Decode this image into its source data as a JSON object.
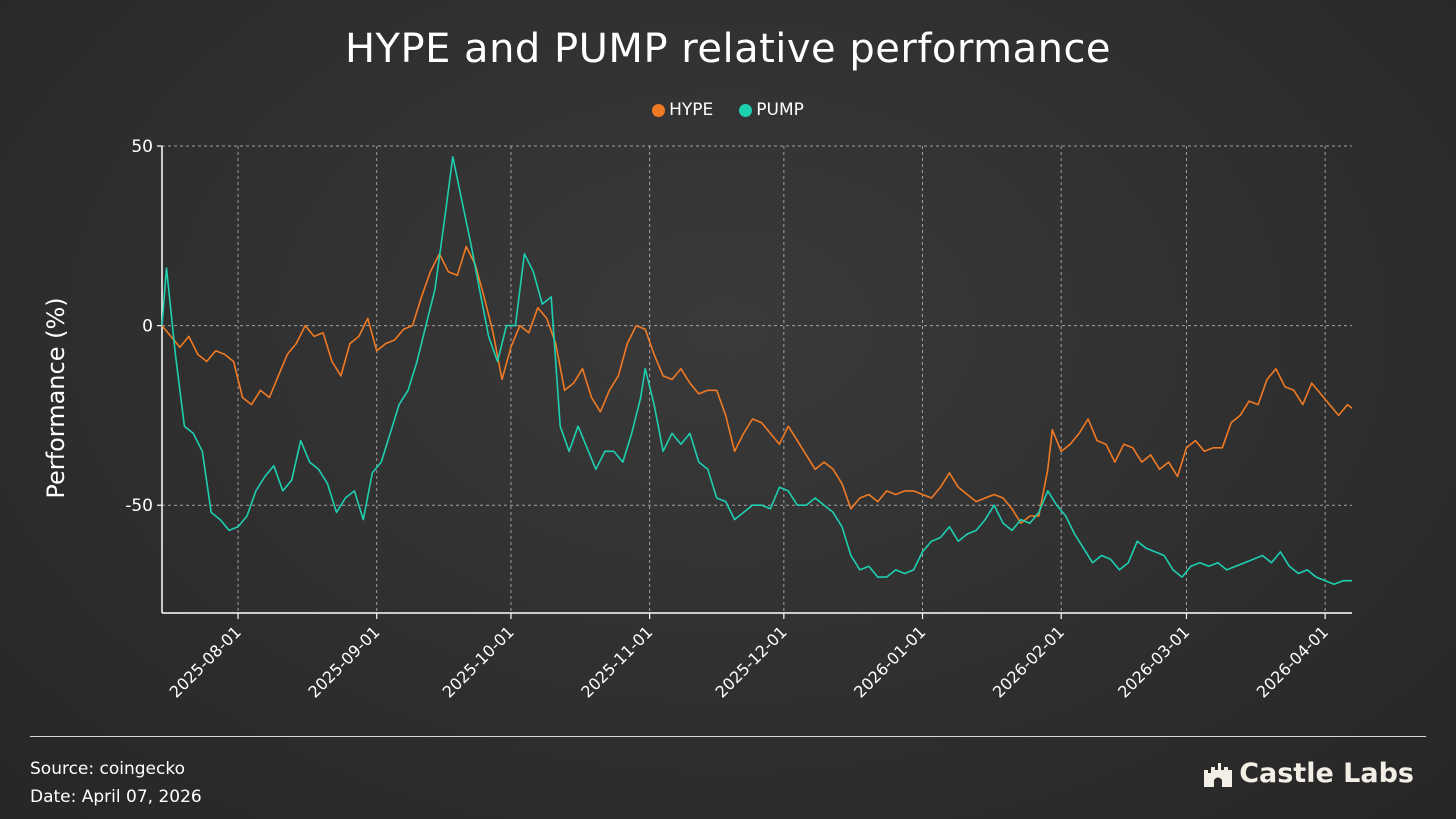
{
  "title": "HYPE and PUMP relative performance",
  "footer": {
    "source": "Source: coingecko",
    "date": "Date: April 07, 2026",
    "brand": "Castle Labs"
  },
  "colors": {
    "hype": "#f07a24",
    "pump": "#1ecfb0",
    "grid": "#bdbdbd",
    "axis": "#ffffff"
  },
  "chart_data": {
    "type": "line",
    "title": "HYPE and PUMP relative performance",
    "xlabel": "",
    "ylabel": "Performance (%)",
    "xlim": [
      "2025-07-15",
      "2026-04-07"
    ],
    "ylim": [
      -80,
      50
    ],
    "yticks": [
      50,
      0,
      -50
    ],
    "ytick_labels": [
      "50",
      "0",
      "-50"
    ],
    "xticks": [
      "2025-08-01",
      "2025-09-01",
      "2025-10-01",
      "2025-11-01",
      "2025-12-01",
      "2026-01-01",
      "2026-02-01",
      "2026-03-01",
      "2026-04-01"
    ],
    "grid": true,
    "legend_position": "top-center",
    "series": [
      {
        "name": "HYPE",
        "color": "#f07a24",
        "points": [
          [
            "2025-07-15",
            0
          ],
          [
            "2025-07-17",
            -3
          ],
          [
            "2025-07-19",
            -6
          ],
          [
            "2025-07-21",
            -3
          ],
          [
            "2025-07-23",
            -8
          ],
          [
            "2025-07-25",
            -10
          ],
          [
            "2025-07-27",
            -7
          ],
          [
            "2025-07-29",
            -8
          ],
          [
            "2025-07-31",
            -10
          ],
          [
            "2025-08-02",
            -20
          ],
          [
            "2025-08-04",
            -22
          ],
          [
            "2025-08-06",
            -18
          ],
          [
            "2025-08-08",
            -20
          ],
          [
            "2025-08-10",
            -14
          ],
          [
            "2025-08-12",
            -8
          ],
          [
            "2025-08-14",
            -5
          ],
          [
            "2025-08-16",
            0
          ],
          [
            "2025-08-18",
            -3
          ],
          [
            "2025-08-20",
            -2
          ],
          [
            "2025-08-22",
            -10
          ],
          [
            "2025-08-24",
            -14
          ],
          [
            "2025-08-26",
            -5
          ],
          [
            "2025-08-28",
            -3
          ],
          [
            "2025-08-30",
            2
          ],
          [
            "2025-09-01",
            -7
          ],
          [
            "2025-09-03",
            -5
          ],
          [
            "2025-09-05",
            -4
          ],
          [
            "2025-09-07",
            -1
          ],
          [
            "2025-09-09",
            0
          ],
          [
            "2025-09-11",
            8
          ],
          [
            "2025-09-13",
            15
          ],
          [
            "2025-09-15",
            20
          ],
          [
            "2025-09-17",
            15
          ],
          [
            "2025-09-19",
            14
          ],
          [
            "2025-09-21",
            22
          ],
          [
            "2025-09-23",
            17
          ],
          [
            "2025-09-25",
            8
          ],
          [
            "2025-09-27",
            -2
          ],
          [
            "2025-09-29",
            -15
          ],
          [
            "2025-10-01",
            -6
          ],
          [
            "2025-10-03",
            0
          ],
          [
            "2025-10-05",
            -2
          ],
          [
            "2025-10-07",
            5
          ],
          [
            "2025-10-09",
            2
          ],
          [
            "2025-10-11",
            -5
          ],
          [
            "2025-10-13",
            -18
          ],
          [
            "2025-10-15",
            -16
          ],
          [
            "2025-10-17",
            -12
          ],
          [
            "2025-10-19",
            -20
          ],
          [
            "2025-10-21",
            -24
          ],
          [
            "2025-10-23",
            -18
          ],
          [
            "2025-10-25",
            -14
          ],
          [
            "2025-10-27",
            -5
          ],
          [
            "2025-10-29",
            0
          ],
          [
            "2025-10-31",
            -1
          ],
          [
            "2025-11-02",
            -8
          ],
          [
            "2025-11-04",
            -14
          ],
          [
            "2025-11-06",
            -15
          ],
          [
            "2025-11-08",
            -12
          ],
          [
            "2025-11-10",
            -16
          ],
          [
            "2025-11-12",
            -19
          ],
          [
            "2025-11-14",
            -18
          ],
          [
            "2025-11-16",
            -18
          ],
          [
            "2025-11-18",
            -25
          ],
          [
            "2025-11-20",
            -35
          ],
          [
            "2025-11-22",
            -30
          ],
          [
            "2025-11-24",
            -26
          ],
          [
            "2025-11-26",
            -27
          ],
          [
            "2025-11-28",
            -30
          ],
          [
            "2025-11-30",
            -33
          ],
          [
            "2025-12-02",
            -28
          ],
          [
            "2025-12-04",
            -32
          ],
          [
            "2025-12-06",
            -36
          ],
          [
            "2025-12-08",
            -40
          ],
          [
            "2025-12-10",
            -38
          ],
          [
            "2025-12-12",
            -40
          ],
          [
            "2025-12-14",
            -44
          ],
          [
            "2025-12-16",
            -51
          ],
          [
            "2025-12-18",
            -48
          ],
          [
            "2025-12-20",
            -47
          ],
          [
            "2025-12-22",
            -49
          ],
          [
            "2025-12-24",
            -46
          ],
          [
            "2025-12-26",
            -47
          ],
          [
            "2025-12-28",
            -46
          ],
          [
            "2025-12-30",
            -46
          ],
          [
            "2026-01-01",
            -47
          ],
          [
            "2026-01-03",
            -48
          ],
          [
            "2026-01-05",
            -45
          ],
          [
            "2026-01-07",
            -41
          ],
          [
            "2026-01-09",
            -45
          ],
          [
            "2026-01-11",
            -47
          ],
          [
            "2026-01-13",
            -49
          ],
          [
            "2026-01-15",
            -48
          ],
          [
            "2026-01-17",
            -47
          ],
          [
            "2026-01-19",
            -48
          ],
          [
            "2026-01-21",
            -51
          ],
          [
            "2026-01-23",
            -55
          ],
          [
            "2026-01-25",
            -53
          ],
          [
            "2026-01-27",
            -53
          ],
          [
            "2026-01-29",
            -40
          ],
          [
            "2026-01-30",
            -29
          ],
          [
            "2026-02-01",
            -35
          ],
          [
            "2026-02-03",
            -33
          ],
          [
            "2026-02-05",
            -30
          ],
          [
            "2026-02-07",
            -26
          ],
          [
            "2026-02-09",
            -32
          ],
          [
            "2026-02-11",
            -33
          ],
          [
            "2026-02-13",
            -38
          ],
          [
            "2026-02-15",
            -33
          ],
          [
            "2026-02-17",
            -34
          ],
          [
            "2026-02-19",
            -38
          ],
          [
            "2026-02-21",
            -36
          ],
          [
            "2026-02-23",
            -40
          ],
          [
            "2026-02-25",
            -38
          ],
          [
            "2026-02-27",
            -42
          ],
          [
            "2026-03-01",
            -34
          ],
          [
            "2026-03-03",
            -32
          ],
          [
            "2026-03-05",
            -35
          ],
          [
            "2026-03-07",
            -34
          ],
          [
            "2026-03-09",
            -34
          ],
          [
            "2026-03-11",
            -27
          ],
          [
            "2026-03-13",
            -25
          ],
          [
            "2026-03-15",
            -21
          ],
          [
            "2026-03-17",
            -22
          ],
          [
            "2026-03-19",
            -15
          ],
          [
            "2026-03-21",
            -12
          ],
          [
            "2026-03-23",
            -17
          ],
          [
            "2026-03-25",
            -18
          ],
          [
            "2026-03-27",
            -22
          ],
          [
            "2026-03-29",
            -16
          ],
          [
            "2026-03-31",
            -19
          ],
          [
            "2026-04-02",
            -22
          ],
          [
            "2026-04-04",
            -25
          ],
          [
            "2026-04-06",
            -22
          ],
          [
            "2026-04-07",
            -23
          ]
        ]
      },
      {
        "name": "PUMP",
        "color": "#1ecfb0",
        "points": [
          [
            "2025-07-15",
            0
          ],
          [
            "2025-07-16",
            16
          ],
          [
            "2025-07-18",
            -8
          ],
          [
            "2025-07-20",
            -28
          ],
          [
            "2025-07-22",
            -30
          ],
          [
            "2025-07-24",
            -35
          ],
          [
            "2025-07-26",
            -52
          ],
          [
            "2025-07-28",
            -54
          ],
          [
            "2025-07-30",
            -57
          ],
          [
            "2025-08-01",
            -56
          ],
          [
            "2025-08-03",
            -53
          ],
          [
            "2025-08-05",
            -46
          ],
          [
            "2025-08-07",
            -42
          ],
          [
            "2025-08-09",
            -39
          ],
          [
            "2025-08-11",
            -46
          ],
          [
            "2025-08-13",
            -43
          ],
          [
            "2025-08-15",
            -32
          ],
          [
            "2025-08-17",
            -38
          ],
          [
            "2025-08-19",
            -40
          ],
          [
            "2025-08-21",
            -44
          ],
          [
            "2025-08-23",
            -52
          ],
          [
            "2025-08-25",
            -48
          ],
          [
            "2025-08-27",
            -46
          ],
          [
            "2025-08-29",
            -54
          ],
          [
            "2025-08-31",
            -41
          ],
          [
            "2025-09-02",
            -38
          ],
          [
            "2025-09-04",
            -30
          ],
          [
            "2025-09-06",
            -22
          ],
          [
            "2025-09-08",
            -18
          ],
          [
            "2025-09-10",
            -10
          ],
          [
            "2025-09-12",
            0
          ],
          [
            "2025-09-14",
            10
          ],
          [
            "2025-09-16",
            28
          ],
          [
            "2025-09-18",
            47
          ],
          [
            "2025-09-20",
            35
          ],
          [
            "2025-09-22",
            23
          ],
          [
            "2025-09-24",
            10
          ],
          [
            "2025-09-26",
            -3
          ],
          [
            "2025-09-28",
            -10
          ],
          [
            "2025-09-30",
            0
          ],
          [
            "2025-10-02",
            0
          ],
          [
            "2025-10-04",
            20
          ],
          [
            "2025-10-06",
            15
          ],
          [
            "2025-10-08",
            6
          ],
          [
            "2025-10-10",
            8
          ],
          [
            "2025-10-12",
            -28
          ],
          [
            "2025-10-14",
            -35
          ],
          [
            "2025-10-16",
            -28
          ],
          [
            "2025-10-18",
            -34
          ],
          [
            "2025-10-20",
            -40
          ],
          [
            "2025-10-22",
            -35
          ],
          [
            "2025-10-24",
            -35
          ],
          [
            "2025-10-26",
            -38
          ],
          [
            "2025-10-28",
            -30
          ],
          [
            "2025-10-30",
            -20
          ],
          [
            "2025-10-31",
            -12
          ],
          [
            "2025-11-02",
            -22
          ],
          [
            "2025-11-04",
            -35
          ],
          [
            "2025-11-06",
            -30
          ],
          [
            "2025-11-08",
            -33
          ],
          [
            "2025-11-10",
            -30
          ],
          [
            "2025-11-12",
            -38
          ],
          [
            "2025-11-14",
            -40
          ],
          [
            "2025-11-16",
            -48
          ],
          [
            "2025-11-18",
            -49
          ],
          [
            "2025-11-20",
            -54
          ],
          [
            "2025-11-22",
            -52
          ],
          [
            "2025-11-24",
            -50
          ],
          [
            "2025-11-26",
            -50
          ],
          [
            "2025-11-28",
            -51
          ],
          [
            "2025-11-30",
            -45
          ],
          [
            "2025-12-02",
            -46
          ],
          [
            "2025-12-04",
            -50
          ],
          [
            "2025-12-06",
            -50
          ],
          [
            "2025-12-08",
            -48
          ],
          [
            "2025-12-10",
            -50
          ],
          [
            "2025-12-12",
            -52
          ],
          [
            "2025-12-14",
            -56
          ],
          [
            "2025-12-16",
            -64
          ],
          [
            "2025-12-18",
            -68
          ],
          [
            "2025-12-20",
            -67
          ],
          [
            "2025-12-22",
            -70
          ],
          [
            "2025-12-24",
            -70
          ],
          [
            "2025-12-26",
            -68
          ],
          [
            "2025-12-28",
            -69
          ],
          [
            "2025-12-30",
            -68
          ],
          [
            "2026-01-01",
            -63
          ],
          [
            "2026-01-03",
            -60
          ],
          [
            "2026-01-05",
            -59
          ],
          [
            "2026-01-07",
            -56
          ],
          [
            "2026-01-09",
            -60
          ],
          [
            "2026-01-11",
            -58
          ],
          [
            "2026-01-13",
            -57
          ],
          [
            "2026-01-15",
            -54
          ],
          [
            "2026-01-17",
            -50
          ],
          [
            "2026-01-19",
            -55
          ],
          [
            "2026-01-21",
            -57
          ],
          [
            "2026-01-23",
            -54
          ],
          [
            "2026-01-25",
            -55
          ],
          [
            "2026-01-27",
            -52
          ],
          [
            "2026-01-29",
            -46
          ],
          [
            "2026-01-31",
            -50
          ],
          [
            "2026-02-02",
            -53
          ],
          [
            "2026-02-04",
            -58
          ],
          [
            "2026-02-06",
            -62
          ],
          [
            "2026-02-08",
            -66
          ],
          [
            "2026-02-10",
            -64
          ],
          [
            "2026-02-12",
            -65
          ],
          [
            "2026-02-14",
            -68
          ],
          [
            "2026-02-16",
            -66
          ],
          [
            "2026-02-18",
            -60
          ],
          [
            "2026-02-20",
            -62
          ],
          [
            "2026-02-22",
            -63
          ],
          [
            "2026-02-24",
            -64
          ],
          [
            "2026-02-26",
            -68
          ],
          [
            "2026-02-28",
            -70
          ],
          [
            "2026-03-02",
            -67
          ],
          [
            "2026-03-04",
            -66
          ],
          [
            "2026-03-06",
            -67
          ],
          [
            "2026-03-08",
            -66
          ],
          [
            "2026-03-10",
            -68
          ],
          [
            "2026-03-12",
            -67
          ],
          [
            "2026-03-14",
            -66
          ],
          [
            "2026-03-16",
            -65
          ],
          [
            "2026-03-18",
            -64
          ],
          [
            "2026-03-20",
            -66
          ],
          [
            "2026-03-22",
            -63
          ],
          [
            "2026-03-24",
            -67
          ],
          [
            "2026-03-26",
            -69
          ],
          [
            "2026-03-28",
            -68
          ],
          [
            "2026-03-30",
            -70
          ],
          [
            "2026-04-01",
            -71
          ],
          [
            "2026-04-03",
            -72
          ],
          [
            "2026-04-05",
            -71
          ],
          [
            "2026-04-07",
            -71
          ]
        ]
      }
    ]
  }
}
